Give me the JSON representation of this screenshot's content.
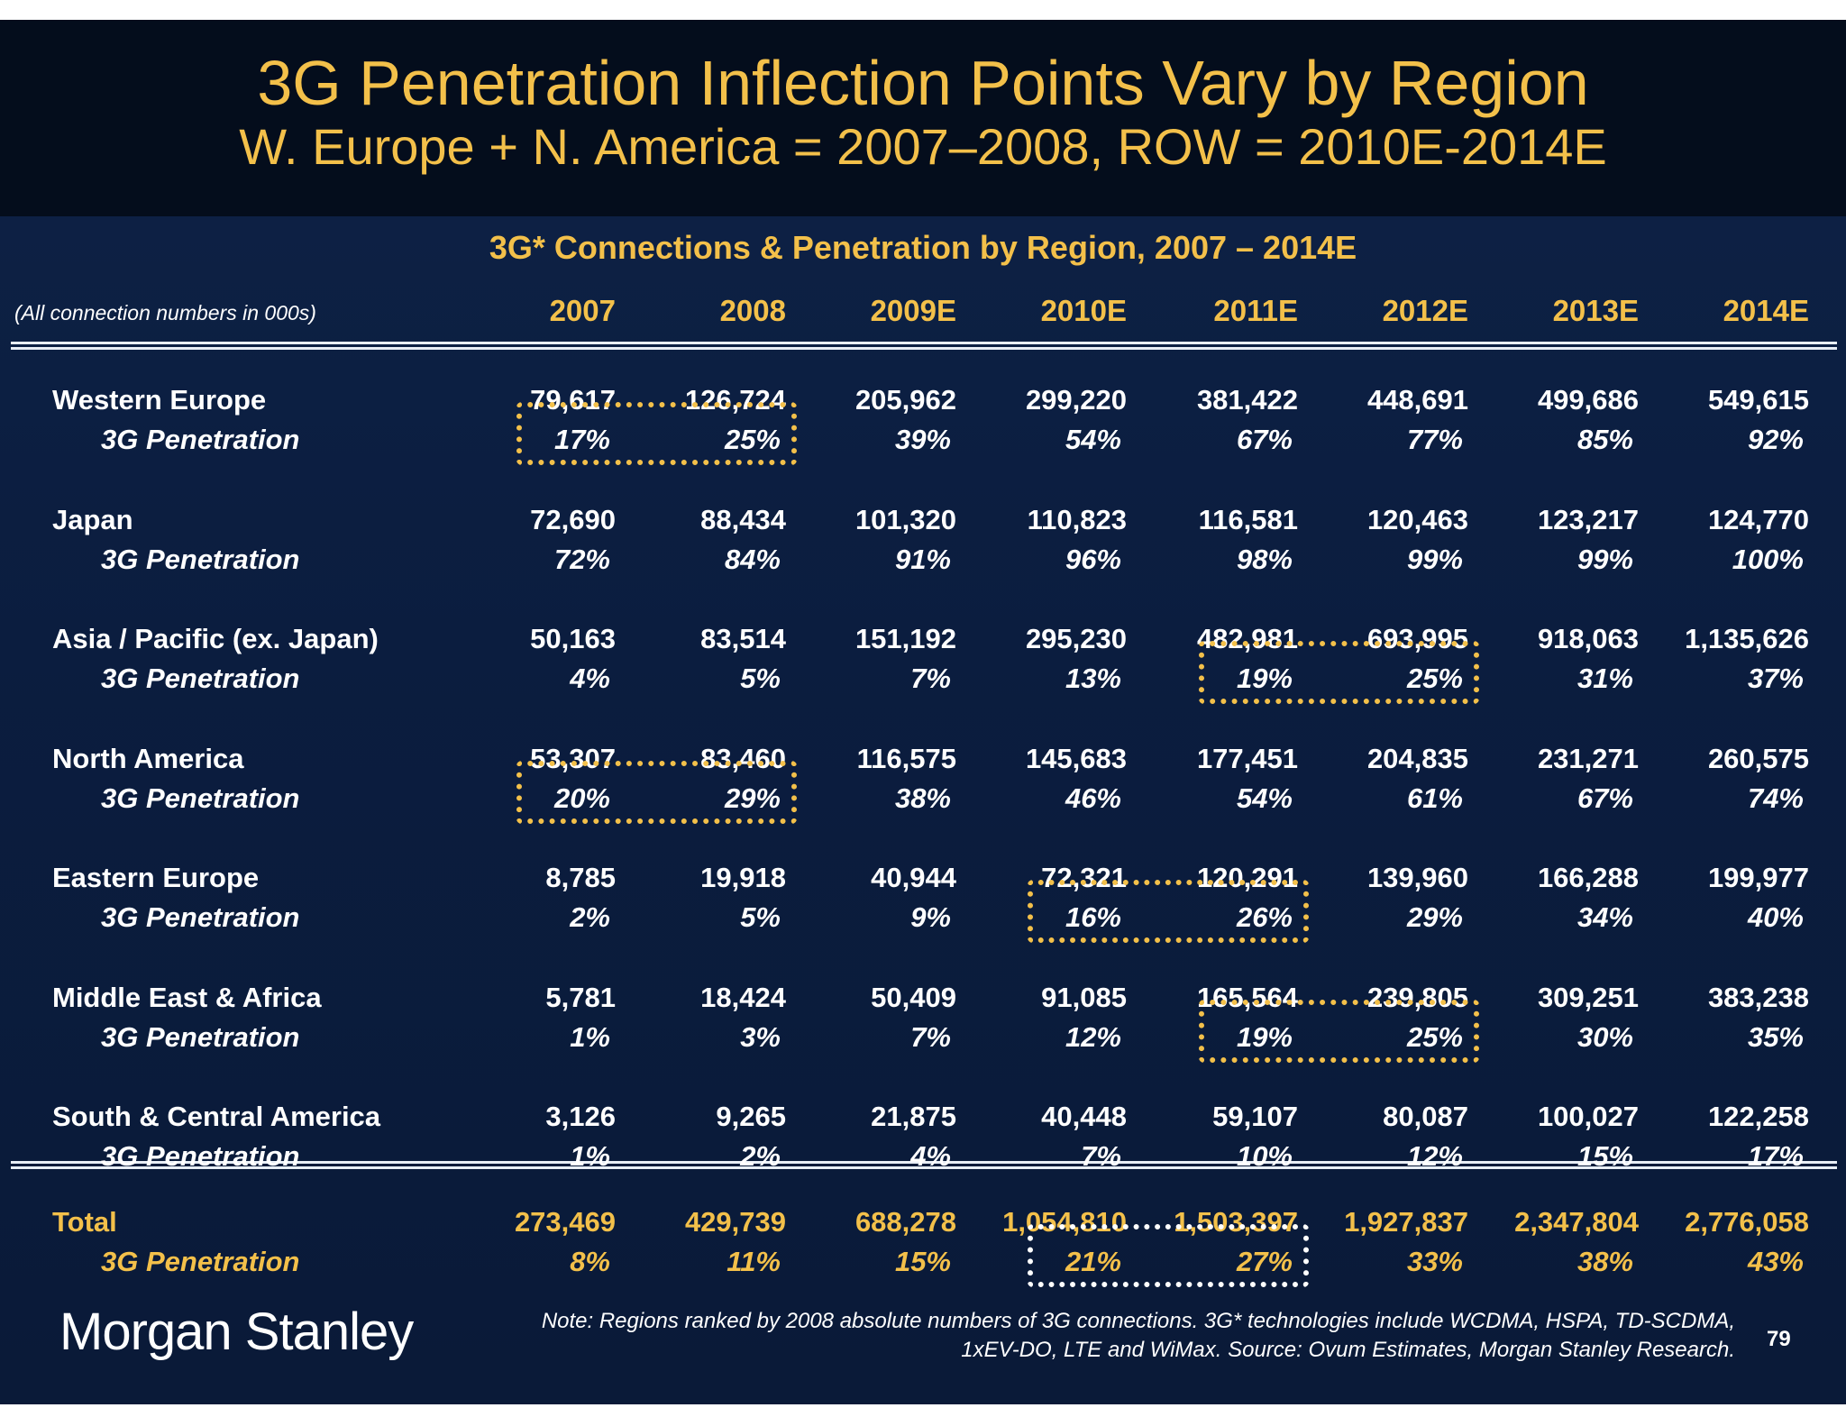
{
  "title": "3G Penetration Inflection Points Vary by Region",
  "subtitle": "W. Europe + N. America = 2007–2008, ROW = 2010E-2014E",
  "table_title": "3G* Connections & Penetration by Region, 2007 – 2014E",
  "units_note": "(All connection numbers in 000s)",
  "years": [
    "2007",
    "2008",
    "2009E",
    "2010E",
    "2011E",
    "2012E",
    "2013E",
    "2014E"
  ],
  "rows": [
    {
      "region": "Western Europe",
      "sub": "3G Penetration",
      "connections": [
        "79,617",
        "126,724",
        "205,962",
        "299,220",
        "381,422",
        "448,691",
        "499,686",
        "549,615"
      ],
      "penetration": [
        "17%",
        "25%",
        "39%",
        "54%",
        "67%",
        "77%",
        "85%",
        "92%"
      ]
    },
    {
      "region": "Japan",
      "sub": "3G Penetration",
      "connections": [
        "72,690",
        "88,434",
        "101,320",
        "110,823",
        "116,581",
        "120,463",
        "123,217",
        "124,770"
      ],
      "penetration": [
        "72%",
        "84%",
        "91%",
        "96%",
        "98%",
        "99%",
        "99%",
        "100%"
      ]
    },
    {
      "region": "Asia / Pacific (ex. Japan)",
      "sub": "3G Penetration",
      "connections": [
        "50,163",
        "83,514",
        "151,192",
        "295,230",
        "482,981",
        "693,995",
        "918,063",
        "1,135,626"
      ],
      "penetration": [
        "4%",
        "5%",
        "7%",
        "13%",
        "19%",
        "25%",
        "31%",
        "37%"
      ]
    },
    {
      "region": "North America",
      "sub": "3G Penetration",
      "connections": [
        "53,307",
        "83,460",
        "116,575",
        "145,683",
        "177,451",
        "204,835",
        "231,271",
        "260,575"
      ],
      "penetration": [
        "20%",
        "29%",
        "38%",
        "46%",
        "54%",
        "61%",
        "67%",
        "74%"
      ]
    },
    {
      "region": "Eastern Europe",
      "sub": "3G Penetration",
      "connections": [
        "8,785",
        "19,918",
        "40,944",
        "72,321",
        "120,291",
        "139,960",
        "166,288",
        "199,977"
      ],
      "penetration": [
        "2%",
        "5%",
        "9%",
        "16%",
        "26%",
        "29%",
        "34%",
        "40%"
      ]
    },
    {
      "region": "Middle East & Africa",
      "sub": "3G Penetration",
      "connections": [
        "5,781",
        "18,424",
        "50,409",
        "91,085",
        "165,564",
        "239,805",
        "309,251",
        "383,238"
      ],
      "penetration": [
        "1%",
        "3%",
        "7%",
        "12%",
        "19%",
        "25%",
        "30%",
        "35%"
      ]
    },
    {
      "region": "South & Central America",
      "sub": "3G Penetration",
      "connections": [
        "3,126",
        "9,265",
        "21,875",
        "40,448",
        "59,107",
        "80,087",
        "100,027",
        "122,258"
      ],
      "penetration": [
        "1%",
        "2%",
        "4%",
        "7%",
        "10%",
        "12%",
        "15%",
        "17%"
      ]
    }
  ],
  "total": {
    "region": "Total",
    "sub": "3G Penetration",
    "connections": [
      "273,469",
      "429,739",
      "688,278",
      "1,054,810",
      "1,503,397",
      "1,927,837",
      "2,347,804",
      "2,776,058"
    ],
    "penetration": [
      "8%",
      "11%",
      "15%",
      "21%",
      "27%",
      "33%",
      "38%",
      "43%"
    ]
  },
  "highlights": [
    {
      "row": 0,
      "from_year": "2007",
      "to_year": "2008",
      "color": "#f3c04a"
    },
    {
      "row": 2,
      "from_year": "2011E",
      "to_year": "2012E",
      "color": "#f3c04a"
    },
    {
      "row": 3,
      "from_year": "2007",
      "to_year": "2008",
      "color": "#f3c04a"
    },
    {
      "row": 4,
      "from_year": "2010E",
      "to_year": "2011E",
      "color": "#f3c04a"
    },
    {
      "row": 5,
      "from_year": "2011E",
      "to_year": "2012E",
      "color": "#f3c04a"
    },
    {
      "row": "total",
      "from_year": "2010E",
      "to_year": "2011E",
      "color": "#ffffff"
    }
  ],
  "logo": "Morgan Stanley",
  "footnote_line1": "Note: Regions ranked by 2008 absolute numbers of 3G connections. 3G* technologies include WCDMA, HSPA, TD-SCDMA,",
  "footnote_line2": "1xEV-DO, LTE and WiMax. Source: Ovum Estimates, Morgan Stanley Research.",
  "page_number": "79",
  "colors": {
    "accent": "#f3c04a",
    "background": "#0b1d3f",
    "header_band": "#040d1c",
    "text": "#ffffff"
  }
}
